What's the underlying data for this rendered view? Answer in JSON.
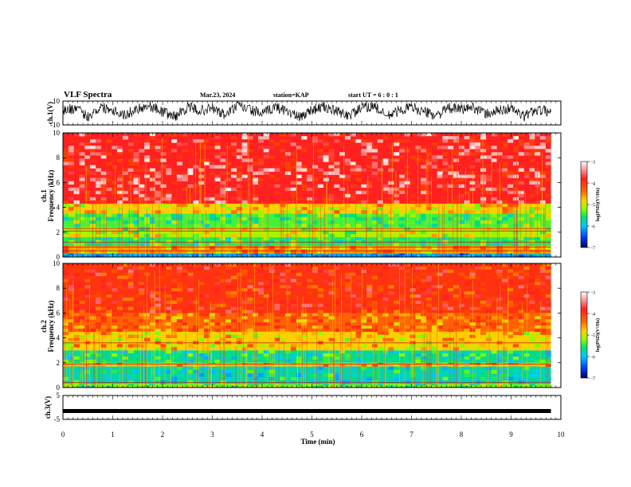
{
  "header": {
    "title": "VLF Spectra",
    "date": "Mar.23, 2024",
    "station": "station=KAP",
    "start": "start UT =  6 : 0 : 1"
  },
  "colorbar": {
    "label": "log(PSD)(V²/Hz)",
    "ticks": [
      "-3",
      "-4",
      "-5",
      "-6",
      "-7"
    ],
    "colors": [
      "#ff2020",
      "#ff2b00",
      "#ffd000",
      "#8cff00",
      "#00e070",
      "#00c8ff",
      "#0040ff",
      "#000060"
    ]
  },
  "chart_data": [
    {
      "type": "line",
      "panel": "ch.1 waveform",
      "ylabel": "ch.1(V)",
      "ylim": [
        -10,
        10
      ],
      "yticks": [
        "10",
        "-10"
      ],
      "xlim": [
        0,
        10
      ],
      "series": [
        {
          "x": [
            0,
            0.25,
            0.5,
            0.75,
            1.0,
            1.25,
            1.5,
            1.75,
            2.0,
            2.25,
            2.5,
            2.75,
            3.0,
            3.25,
            3.5,
            3.75,
            4.0,
            4.25,
            4.5,
            4.75,
            5.0,
            5.25,
            5.5,
            5.75,
            6.0,
            6.25,
            6.5,
            6.75,
            7.0,
            7.25,
            7.5,
            7.75,
            8.0,
            8.25,
            8.5,
            8.75,
            9.0,
            9.25,
            9.5,
            9.8
          ],
          "values": [
            2,
            4,
            -3,
            5,
            3,
            -2,
            4,
            6,
            1,
            -3,
            5,
            2,
            4,
            -2,
            6,
            3,
            -1,
            5,
            2,
            -4,
            3,
            5,
            1,
            -2,
            4,
            6,
            -3,
            2,
            5,
            1,
            -2,
            4,
            3,
            5,
            -1,
            2,
            4,
            -3,
            3,
            1
          ]
        }
      ]
    },
    {
      "type": "heatmap",
      "panel": "ch.1 spectrogram",
      "ylabel": "ch.1 Frequency (kHz)",
      "ylim": [
        0,
        10
      ],
      "yticks": [
        "0",
        "2",
        "4",
        "6",
        "8",
        "10"
      ],
      "xlim": [
        0,
        10
      ],
      "zlim": [
        -7,
        -3
      ],
      "bands": [
        {
          "f0": 0.0,
          "f1": 0.3,
          "level": -5.8
        },
        {
          "f0": 0.3,
          "f1": 0.9,
          "level": -4.1
        },
        {
          "f0": 0.9,
          "f1": 1.6,
          "level": -5.0
        },
        {
          "f0": 1.6,
          "f1": 2.4,
          "level": -4.6
        },
        {
          "f0": 2.4,
          "f1": 3.5,
          "level": -4.9
        },
        {
          "f0": 3.5,
          "f1": 4.3,
          "level": -4.3
        },
        {
          "f0": 4.3,
          "f1": 10.0,
          "level": -3.2
        }
      ],
      "lines_khz": [
        0.5,
        0.8,
        1.2,
        2.1,
        2.3
      ]
    },
    {
      "type": "heatmap",
      "panel": "ch.2 spectrogram",
      "ylabel": "ch.2 Frequency (kHz)",
      "ylim": [
        0,
        10
      ],
      "yticks": [
        "0",
        "2",
        "4",
        "6",
        "8",
        "10"
      ],
      "xlim": [
        0,
        10
      ],
      "zlim": [
        -7,
        -3
      ],
      "bands": [
        {
          "f0": 0.0,
          "f1": 0.3,
          "level": -4.8
        },
        {
          "f0": 0.3,
          "f1": 1.7,
          "level": -5.3
        },
        {
          "f0": 1.7,
          "f1": 2.0,
          "level": -4.2
        },
        {
          "f0": 2.0,
          "f1": 3.0,
          "level": -5.2
        },
        {
          "f0": 3.0,
          "f1": 4.5,
          "level": -4.3
        },
        {
          "f0": 4.5,
          "f1": 6.0,
          "level": -3.9
        },
        {
          "f0": 6.0,
          "f1": 10.0,
          "level": -3.5
        }
      ],
      "lines_khz": [
        0.4,
        1.9,
        3.6
      ]
    },
    {
      "type": "line",
      "panel": "ch.3 waveform",
      "ylabel": "ch.3(V)",
      "ylim": [
        -5,
        5
      ],
      "yticks": [
        "5",
        "-5"
      ],
      "xlim": [
        0,
        10
      ],
      "series": [
        {
          "x": [
            0,
            9.8
          ],
          "values": [
            -1.5,
            -1.5
          ]
        }
      ]
    }
  ],
  "xaxis": {
    "label": "Time (min)",
    "ticks": [
      "0",
      "1",
      "2",
      "3",
      "4",
      "5",
      "6",
      "7",
      "8",
      "9",
      "10"
    ]
  }
}
